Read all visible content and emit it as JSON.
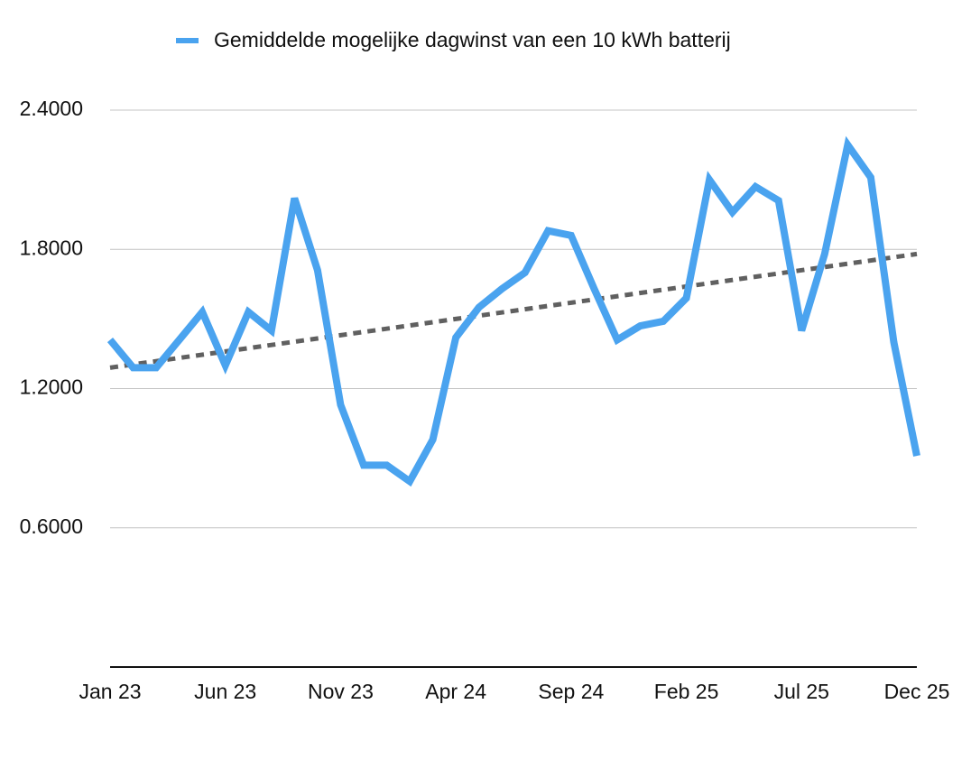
{
  "chart_data": {
    "type": "line",
    "categories": [
      "Jan 23",
      null,
      null,
      null,
      null,
      "Jun 23",
      null,
      null,
      null,
      null,
      "Nov 23",
      null,
      null,
      null,
      null,
      "Apr 24",
      null,
      null,
      null,
      null,
      "Sep 24",
      null,
      null,
      null,
      null,
      "Feb 25",
      null,
      null,
      null,
      null,
      "Jul 25",
      null,
      null,
      null,
      null,
      "Dec 25"
    ],
    "series": [
      {
        "name": "Gemiddelde mogelijke dagwinst van een 10 kWh batterij",
        "color": "#4aa3ef",
        "values": [
          1.41,
          1.29,
          1.29,
          1.41,
          1.53,
          1.3,
          1.53,
          1.45,
          2.02,
          1.71,
          1.13,
          0.87,
          0.87,
          0.8,
          0.98,
          1.42,
          1.55,
          1.63,
          1.7,
          1.88,
          1.86,
          1.63,
          1.41,
          1.47,
          1.49,
          1.59,
          2.1,
          1.96,
          2.07,
          2.01,
          1.45,
          1.78,
          2.25,
          2.11,
          1.4,
          0.91
        ]
      }
    ],
    "trendline": {
      "start": 1.29,
      "end": 1.78,
      "color": "#606060"
    },
    "ylim": [
      0,
      2.4
    ],
    "yticks": [
      {
        "value": 0.6,
        "label": "0.6000"
      },
      {
        "value": 1.2,
        "label": "1.2000"
      },
      {
        "value": 1.8,
        "label": "1.8000"
      },
      {
        "value": 2.4,
        "label": "2.4000"
      }
    ],
    "grid": true,
    "legend": "top"
  }
}
